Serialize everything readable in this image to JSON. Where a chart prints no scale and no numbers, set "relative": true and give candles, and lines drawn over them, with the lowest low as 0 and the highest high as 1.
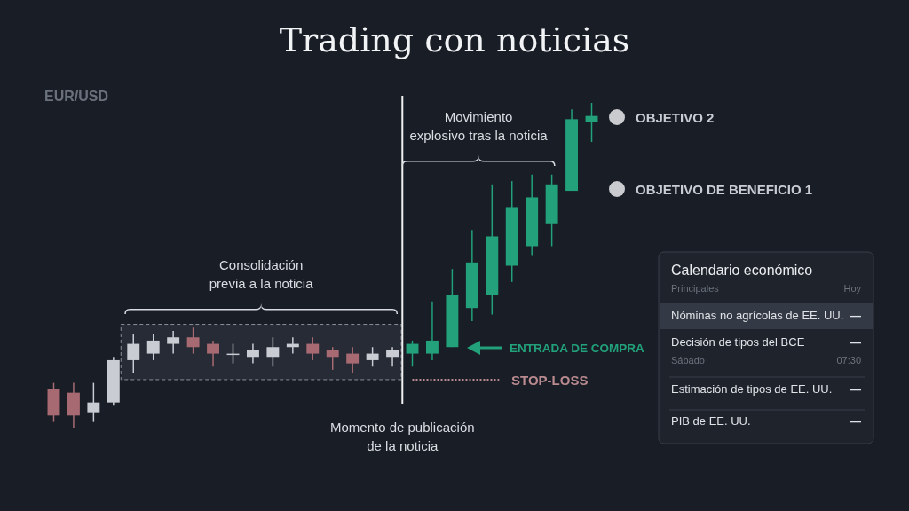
{
  "chart_data": [
    {
      "type": "candlestick",
      "title": "Trading con noticias",
      "ylabel": "EUR/USD",
      "relative": true,
      "categories": [
        null,
        null,
        null,
        null,
        null,
        null,
        null,
        null,
        null,
        null,
        null,
        null,
        null,
        null,
        null,
        null,
        null,
        null,
        null,
        null,
        null,
        null,
        null,
        null,
        null,
        null,
        null,
        null
      ],
      "ohlc": [
        [
          0.12,
          0.14,
          0.02,
          0.04
        ],
        [
          0.11,
          0.14,
          0,
          0.04
        ],
        [
          0.05,
          0.14,
          0.02,
          0.08
        ],
        [
          0.08,
          0.22,
          0.07,
          0.21
        ],
        [
          0.21,
          0.29,
          0.17,
          0.26
        ],
        [
          0.23,
          0.29,
          0.21,
          0.27
        ],
        [
          0.26,
          0.3,
          0.23,
          0.28
        ],
        [
          0.28,
          0.31,
          0.23,
          0.25
        ],
        [
          0.26,
          0.27,
          0.19,
          0.23
        ],
        [
          0.23,
          0.26,
          0.2,
          0.23
        ],
        [
          0.22,
          0.26,
          0.2,
          0.24
        ],
        [
          0.22,
          0.28,
          0.19,
          0.25
        ],
        [
          0.25,
          0.28,
          0.23,
          0.26
        ],
        [
          0.26,
          0.28,
          0.21,
          0.23
        ],
        [
          0.24,
          0.25,
          0.18,
          0.22
        ],
        [
          0.23,
          0.25,
          0.17,
          0.2
        ],
        [
          0.21,
          0.25,
          0.19,
          0.23
        ],
        [
          0.22,
          0.25,
          0.19,
          0.24
        ],
        [
          0.23,
          0.27,
          0.19,
          0.26
        ],
        [
          0.23,
          0.39,
          0.21,
          0.27
        ],
        [
          0.25,
          0.49,
          0.25,
          0.41
        ],
        [
          0.37,
          0.61,
          0.33,
          0.51
        ],
        [
          0.41,
          0.75,
          0.35,
          0.59
        ],
        [
          0.5,
          0.76,
          0.45,
          0.68
        ],
        [
          0.56,
          0.78,
          0.53,
          0.71
        ],
        [
          0.63,
          0.78,
          0.56,
          0.75
        ],
        [
          0.73,
          0.98,
          0.73,
          0.95
        ],
        [
          0.94,
          1,
          0.88,
          0.96
        ]
      ],
      "colors": [
        "#a86a72",
        "#a86a72",
        "#c9cdd3",
        "#c9cdd3",
        "#c9cdd3",
        "#c9cdd3",
        "#c9cdd3",
        "#a86a72",
        "#a86a72",
        "#c9cdd3",
        "#c9cdd3",
        "#c9cdd3",
        "#c9cdd3",
        "#a86a72",
        "#a86a72",
        "#a86a72",
        "#c9cdd3",
        "#c9cdd3",
        "#22a17b",
        "#22a17b",
        "#22a17b",
        "#22a17b",
        "#22a17b",
        "#22a17b",
        "#22a17b",
        "#22a17b",
        "#22a17b",
        "#22a17b"
      ],
      "ref_lines": [
        {
          "axis": "y",
          "value": 0.15,
          "label": "STOP-LOSS",
          "color": "#b98a8f",
          "line_style": "dotted"
        }
      ],
      "annotations": [
        "Consolidación previa a la noticia",
        "Movimiento explosivo tras la noticia",
        "Momento de publicación de la noticia",
        "ENTRADA DE COMPRA",
        "OBJETIVO 2",
        "OBJETIVO DE BENEFICIO 1"
      ]
    },
    {
      "type": "other",
      "title": "Calendario económico",
      "annotations": [
        "Principales",
        "Hoy",
        "Nóminas no agrícolas de EE. UU.",
        "—",
        "Decisión de tipos del BCE",
        "—",
        "Sábado",
        "07:30",
        "Estimación de tipos de EE. UU.",
        "—",
        "PIB de EE. UU.",
        "—"
      ]
    }
  ]
}
